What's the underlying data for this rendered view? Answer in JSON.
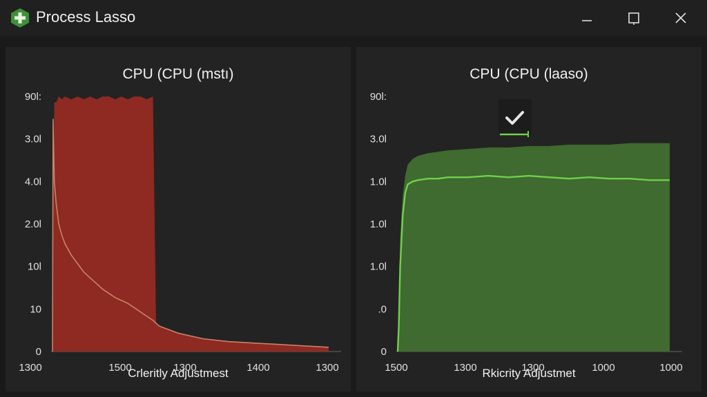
{
  "window": {
    "title": "Process Lasso",
    "app_icon": "plus-shield-icon",
    "controls": [
      "minimize-icon",
      "maximize-icon",
      "close-icon"
    ]
  },
  "colors": {
    "background": "#1e1e1e",
    "panel": "#232323",
    "red_fill": "#8e2a22",
    "red_line": "#c9826a",
    "green_fill": "#3f6a30",
    "green_line": "#6fd14a",
    "text": "#e6e6e6"
  },
  "chart_data": [
    {
      "type": "area",
      "title": "CPU (CPU (mstı)",
      "xlabel": "Crleritly Adjustmest",
      "ylabel": "",
      "y_tick_labels": [
        "0",
        "10",
        "10l",
        "2.0l",
        "4.0l",
        "3.0l",
        "90l:"
      ],
      "x_tick_labels": [
        "1300",
        "1500",
        "1300",
        "1400",
        "1300"
      ],
      "x": [
        0,
        0.1,
        0.3,
        0.6,
        1,
        1.5,
        2,
        3,
        4,
        5,
        6,
        7,
        8,
        9,
        10,
        11,
        12,
        13,
        14,
        15,
        16,
        16.5,
        17,
        20,
        24,
        28,
        32,
        36,
        40,
        44
      ],
      "series": [
        {
          "values": [
            0,
            50,
            88,
            88,
            90,
            89,
            90,
            89,
            90,
            89,
            90,
            89,
            90,
            90,
            89,
            90,
            89,
            90,
            90,
            89,
            90,
            10,
            9,
            6.5,
            4.5,
            3.5,
            3,
            2.5,
            2,
            1.5
          ]
        },
        {
          "values": [
            0,
            82,
            60,
            52,
            45,
            41,
            38,
            34,
            31,
            28,
            26,
            24,
            22,
            20.5,
            19,
            18,
            17,
            15.5,
            14,
            12.5,
            11,
            10,
            9,
            6.5,
            4.5,
            3.5,
            3,
            2.5,
            2,
            1.5
          ]
        }
      ],
      "xlim": [
        0,
        44
      ],
      "ylim": [
        0,
        90
      ],
      "grid": false
    },
    {
      "type": "area",
      "title": "CPU (CPU (laaso)",
      "xlabel": "Rkicrity Adjustmet",
      "ylabel": "",
      "y_tick_labels": [
        "0",
        ".0",
        "1.0l",
        "1.0l",
        "1.0l",
        "3.0l",
        "90l:"
      ],
      "x_tick_labels": [
        "1500",
        "1300",
        "1300",
        "1000",
        "1000"
      ],
      "x": [
        0,
        0.2,
        0.5,
        1,
        1.5,
        2,
        3,
        4,
        6,
        8,
        10,
        14,
        18,
        22,
        26,
        30,
        34,
        38,
        42,
        46,
        50,
        54
      ],
      "series": [
        {
          "values": [
            0,
            15,
            40,
            55,
            62,
            66,
            68,
            69,
            70,
            70.5,
            71,
            71.5,
            72,
            72,
            72.5,
            72.5,
            73,
            73,
            73,
            73.5,
            73.5,
            73.5
          ]
        },
        {
          "values": [
            0,
            8,
            30,
            48,
            56,
            59,
            60,
            60.5,
            61,
            61,
            61.5,
            61.5,
            62,
            61.5,
            62,
            61.5,
            61,
            61.5,
            61,
            61,
            60.5,
            60.5
          ]
        }
      ],
      "xlim": [
        0,
        54
      ],
      "ylim": [
        0,
        90
      ],
      "grid": false
    }
  ]
}
